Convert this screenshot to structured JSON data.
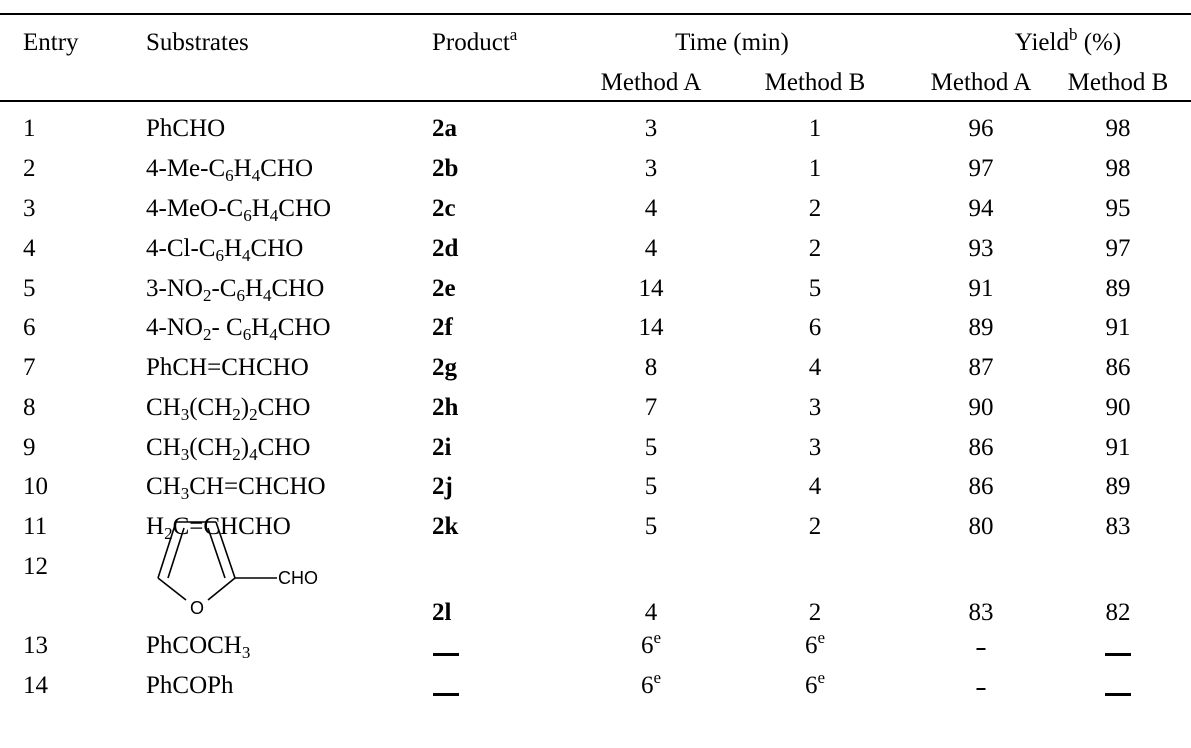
{
  "headers": {
    "entry": "Entry",
    "substrates": "Substrates",
    "product": "Product",
    "product_note": "a",
    "time": "Time (min)",
    "yield": "Yield",
    "yield_note": "b",
    "yield_unit": "(%)",
    "method_a": "Method A",
    "method_b": "Method B"
  },
  "rows": [
    {
      "entry": "1",
      "substrate": [
        {
          "t": "PhCHO"
        }
      ],
      "product": "2a",
      "time_a": "3",
      "time_b": "1",
      "yield_a": "96",
      "yield_b": "98"
    },
    {
      "entry": "2",
      "substrate": [
        {
          "t": "4-Me-C"
        },
        {
          "sub": "6"
        },
        {
          "t": "H"
        },
        {
          "sub": "4"
        },
        {
          "t": "CHO"
        }
      ],
      "product": "2b",
      "time_a": "3",
      "time_b": "1",
      "yield_a": "97",
      "yield_b": "98"
    },
    {
      "entry": "3",
      "substrate": [
        {
          "t": "4-MeO-C"
        },
        {
          "sub": "6"
        },
        {
          "t": "H"
        },
        {
          "sub": "4"
        },
        {
          "t": "CHO"
        }
      ],
      "product": "2c",
      "time_a": "4",
      "time_b": "2",
      "yield_a": "94",
      "yield_b": "95"
    },
    {
      "entry": "4",
      "substrate": [
        {
          "t": "4-Cl-C"
        },
        {
          "sub": "6"
        },
        {
          "t": "H"
        },
        {
          "sub": "4"
        },
        {
          "t": "CHO"
        }
      ],
      "product": "2d",
      "time_a": "4",
      "time_b": "2",
      "yield_a": "93",
      "yield_b": "97"
    },
    {
      "entry": "5",
      "substrate": [
        {
          "t": "3-NO"
        },
        {
          "sub": "2"
        },
        {
          "t": "-C"
        },
        {
          "sub": "6"
        },
        {
          "t": "H"
        },
        {
          "sub": "4"
        },
        {
          "t": "CHO"
        }
      ],
      "product": "2e",
      "time_a": "14",
      "time_b": "5",
      "yield_a": "91",
      "yield_b": "89"
    },
    {
      "entry": "6",
      "substrate": [
        {
          "t": "4-NO"
        },
        {
          "sub": "2"
        },
        {
          "t": "- C"
        },
        {
          "sub": "6"
        },
        {
          "t": "H"
        },
        {
          "sub": "4"
        },
        {
          "t": "CHO"
        }
      ],
      "product": "2f",
      "time_a": "14",
      "time_b": "6",
      "yield_a": "89",
      "yield_b": "91"
    },
    {
      "entry": "7",
      "substrate": [
        {
          "t": "PhCH=CHCHO"
        }
      ],
      "product": "2g",
      "time_a": "8",
      "time_b": "4",
      "yield_a": "87",
      "yield_b": "86"
    },
    {
      "entry": "8",
      "substrate": [
        {
          "t": "CH"
        },
        {
          "sub": "3"
        },
        {
          "t": "(CH"
        },
        {
          "sub": "2"
        },
        {
          "t": ")"
        },
        {
          "sub": "2"
        },
        {
          "t": "CHO"
        }
      ],
      "product": "2h",
      "time_a": "7",
      "time_b": "3",
      "yield_a": "90",
      "yield_b": "90"
    },
    {
      "entry": "9",
      "substrate": [
        {
          "t": "CH"
        },
        {
          "sub": "3"
        },
        {
          "t": "(CH"
        },
        {
          "sub": "2"
        },
        {
          "t": ")"
        },
        {
          "sub": "4"
        },
        {
          "t": "CHO"
        }
      ],
      "product": "2i",
      "time_a": "5",
      "time_b": "3",
      "yield_a": "86",
      "yield_b": "91"
    },
    {
      "entry": "10",
      "substrate": [
        {
          "t": "CH"
        },
        {
          "sub": "3"
        },
        {
          "t": "CH=CHCHO"
        }
      ],
      "product": "2j",
      "time_a": "5",
      "time_b": "4",
      "yield_a": "86",
      "yield_b": "89"
    },
    {
      "entry": "11",
      "substrate": [
        {
          "t": "H"
        },
        {
          "sub": "2"
        },
        {
          "t": "C=CHCHO"
        }
      ],
      "product": "2k",
      "time_a": "5",
      "time_b": "2",
      "yield_a": "80",
      "yield_b": "83"
    },
    {
      "entry": "12",
      "substrate": [],
      "product": "2l",
      "time_a": "4",
      "time_b": "2",
      "yield_a": "83",
      "yield_b": "82"
    },
    {
      "entry": "13",
      "substrate": [
        {
          "t": "PhCOCH"
        },
        {
          "sub": "3"
        }
      ],
      "product": "",
      "time_a": "6",
      "time_b": "6",
      "time_note": "e",
      "yield_a": "",
      "yield_b": ""
    },
    {
      "entry": "14",
      "substrate": [
        {
          "t": "PhCOPh"
        }
      ],
      "product": "",
      "time_a": "6",
      "time_b": "6",
      "time_note": "e",
      "yield_a": "",
      "yield_b": ""
    }
  ],
  "furan": {
    "o_label": "O",
    "cho_label": "CHO"
  }
}
